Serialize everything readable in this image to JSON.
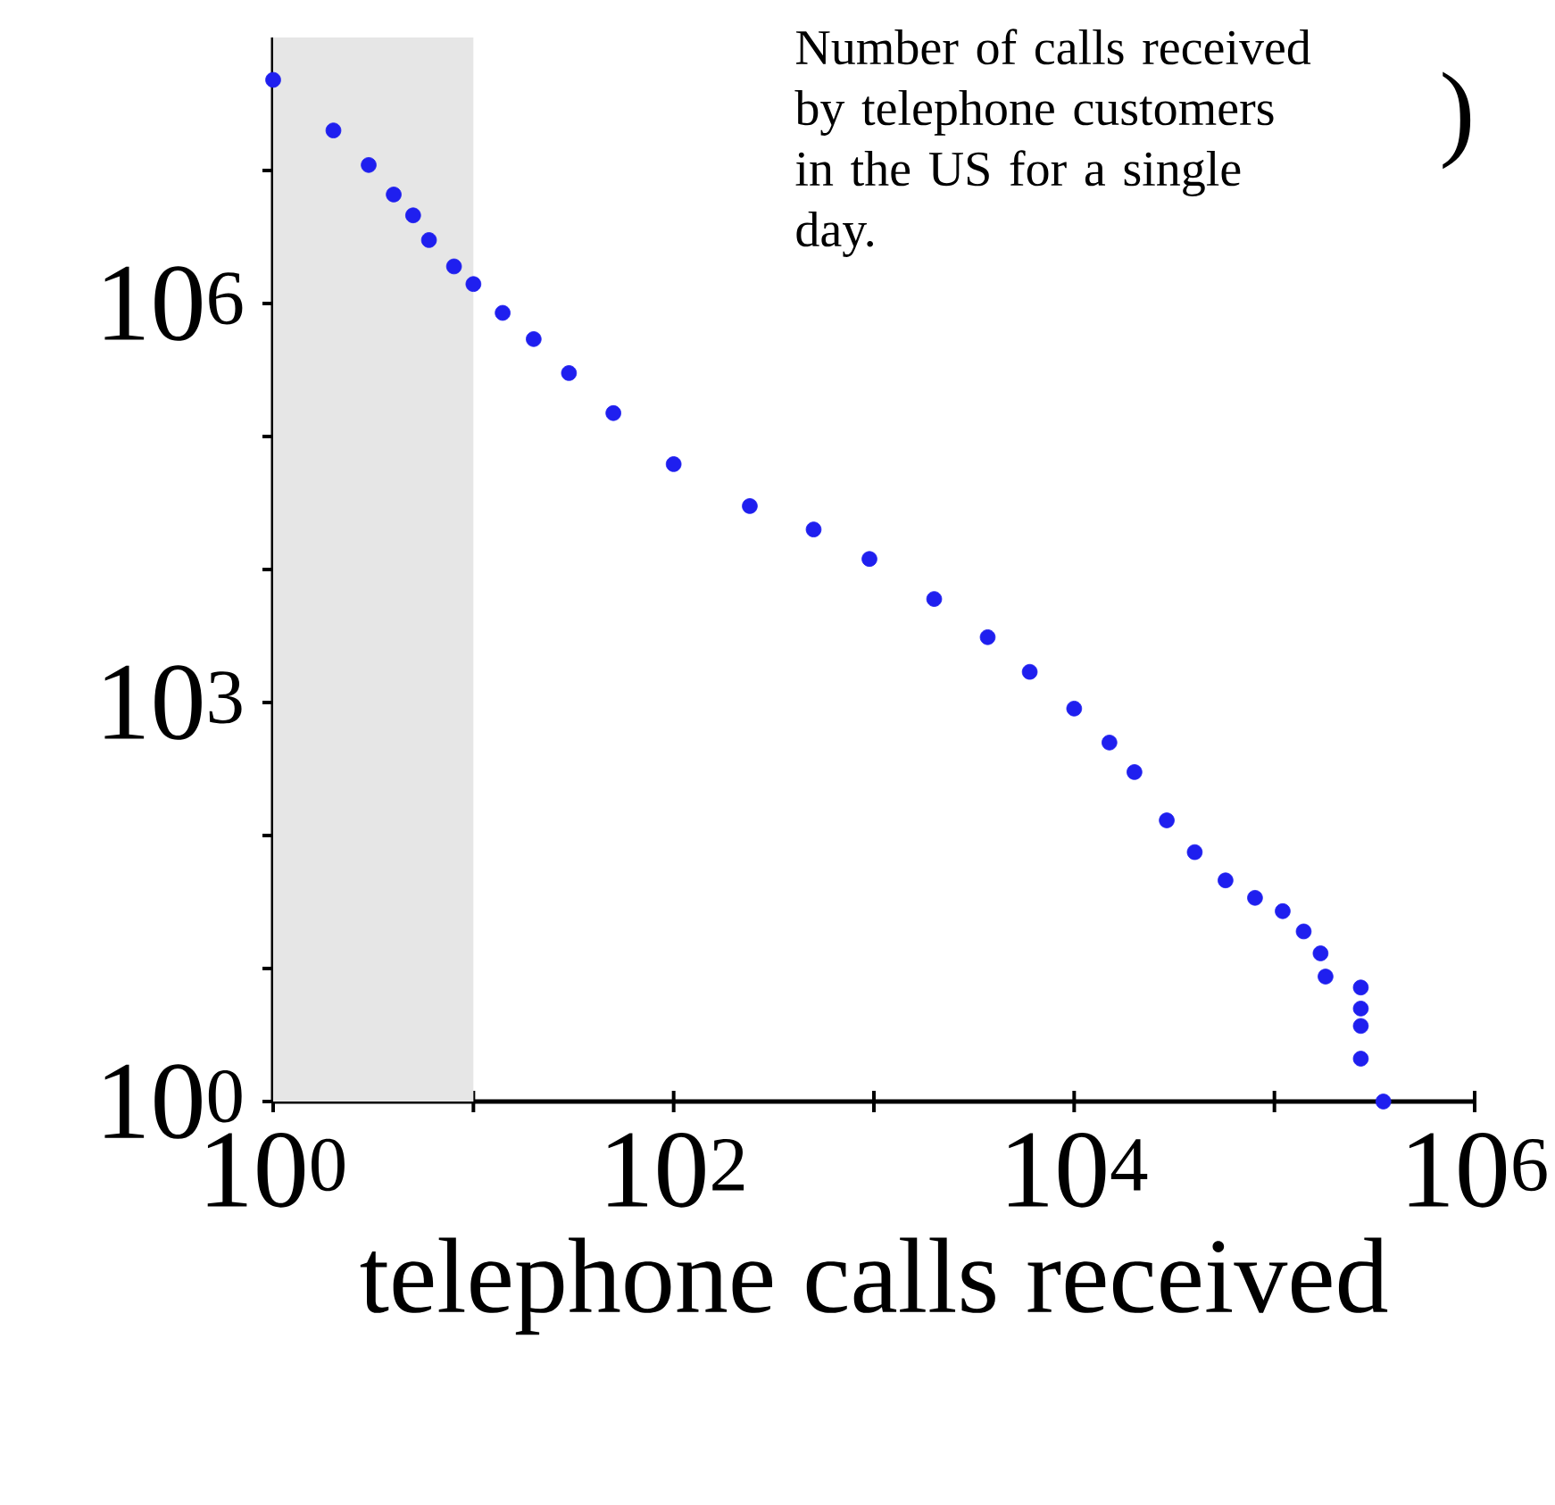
{
  "chart_data": {
    "type": "scatter",
    "xlabel": "telephone calls received",
    "log": "xy",
    "grid": false,
    "xlim": [
      1,
      1000000
    ],
    "ylim": [
      1,
      100000000
    ],
    "xticks": [
      {
        "value": 1,
        "label": "10$^{0}$"
      },
      {
        "value": 10,
        "label": null
      },
      {
        "value": 100,
        "label": "10$^{2}$"
      },
      {
        "value": 1000,
        "label": null
      },
      {
        "value": 10000,
        "label": "10$^{4}$"
      },
      {
        "value": 100000,
        "label": null
      },
      {
        "value": 1000000,
        "label": "10$^{6}$"
      }
    ],
    "yticks": [
      {
        "value": 1,
        "label": "10$^{0}$"
      },
      {
        "value": 10,
        "label": null
      },
      {
        "value": 100,
        "label": null
      },
      {
        "value": 1000,
        "label": "10$^{3}$"
      },
      {
        "value": 10000,
        "label": null
      },
      {
        "value": 100000,
        "label": null
      },
      {
        "value": 1000000,
        "label": "10$^{6}$"
      },
      {
        "value": 10000000,
        "label": null
      }
    ],
    "bands": [
      {
        "axis": "x",
        "from": 1,
        "to": 10,
        "color": "#e6e6e6"
      }
    ],
    "annotations": [
      "Number of calls received by telephone customers in the US for a single day.",
      ")"
    ],
    "series": [
      {
        "color": "#1f1fef",
        "x": [
          1,
          2,
          3,
          4,
          5,
          6,
          8,
          10,
          14,
          20,
          30,
          50,
          100,
          240,
          500,
          950,
          2000,
          3700,
          6000,
          10000,
          15000,
          20000,
          29000,
          40000,
          57000,
          80000,
          110000,
          140000,
          170000,
          180000,
          270000,
          270000,
          270000,
          270000,
          350000
        ],
        "values": [
          48000000,
          20000000,
          11000000,
          6600000,
          4600000,
          3000000,
          1900000,
          1400000,
          850000,
          540000,
          300000,
          150000,
          62000,
          30000,
          20000,
          12000,
          6000,
          3100,
          1700,
          900,
          500,
          300,
          130,
          75,
          46,
          34,
          27,
          19,
          13,
          8.7,
          7.2,
          5,
          3.7,
          2.1,
          1
        ]
      }
    ]
  }
}
